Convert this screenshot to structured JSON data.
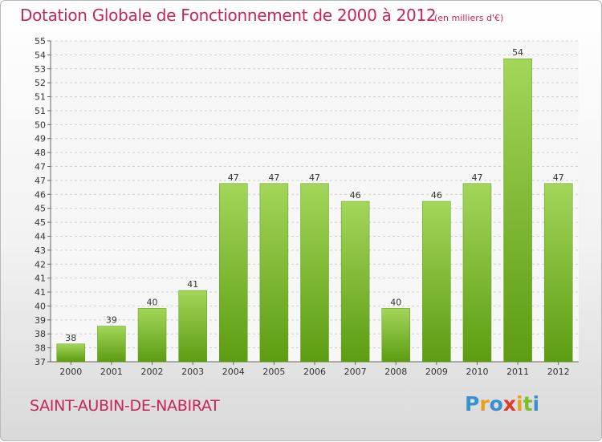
{
  "chart_data": {
    "type": "bar",
    "title": "Dotation Globale de Fonctionnement de 2000 à 2012",
    "subtitle": "(en milliers d'€)",
    "categories": [
      "2000",
      "2001",
      "2002",
      "2003",
      "2004",
      "2005",
      "2006",
      "2007",
      "2008",
      "2009",
      "2010",
      "2011",
      "2012"
    ],
    "values": [
      38,
      39,
      40,
      41,
      47,
      47,
      47,
      46,
      40,
      46,
      47,
      54,
      47
    ],
    "ylim": [
      37,
      55
    ],
    "yticks": [
      "37",
      "38",
      "38",
      "39",
      "40",
      "41",
      "41",
      "42",
      "43",
      "44",
      "45",
      "45",
      "46",
      "47",
      "47",
      "48",
      "49",
      "50",
      "51",
      "51",
      "52",
      "53",
      "54",
      "55"
    ],
    "grid": true,
    "bar_color": "#7bbf2a",
    "title_color": "#c8245a"
  },
  "footer": {
    "commune": "SAINT-AUBIN-DE-NABIRAT",
    "logo_letters": [
      {
        "ch": "P",
        "color": "#3a8fd0"
      },
      {
        "ch": "r",
        "color": "#e8a020"
      },
      {
        "ch": "o",
        "color": "#3a8fd0"
      },
      {
        "ch": "x",
        "color": "#e03a2a"
      },
      {
        "ch": "i",
        "color": "#e8a020"
      },
      {
        "ch": "t",
        "color": "#7bbf2a"
      },
      {
        "ch": "i",
        "color": "#3a8fd0"
      }
    ]
  }
}
